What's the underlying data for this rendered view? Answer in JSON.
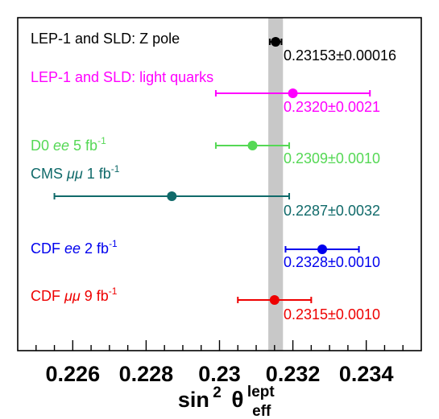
{
  "chart_data": {
    "type": "scatter",
    "subtype": "measurement-comparison",
    "xlabel": {
      "main": "sin",
      "sup": "2",
      "theta": "θ",
      "theta_sub": "eff",
      "theta_sup": "lept"
    },
    "xlim": [
      0.2245,
      0.2355
    ],
    "major_ticks": [
      0.226,
      0.228,
      0.23,
      0.232,
      0.234
    ],
    "tick_labels": [
      "0.226",
      "0.228",
      "0.23",
      "0.232",
      "0.234"
    ],
    "band": {
      "center": 0.23153,
      "half_width": 0.00016,
      "color": "#c8c8c8"
    },
    "grid": false,
    "legend": "none",
    "series": [
      {
        "label_parts": [
          {
            "t": "LEP-1 and SLD: Z pole",
            "s": "n"
          }
        ],
        "value": 0.23153,
        "error": 0.00016,
        "value_text": "0.23153±0.00016",
        "color": "#000000"
      },
      {
        "label_parts": [
          {
            "t": "LEP-1 and SLD: light quarks",
            "s": "n"
          }
        ],
        "value": 0.232,
        "error": 0.0021,
        "value_text": "0.2320±0.0021",
        "color": "#ff00ff"
      },
      {
        "label_parts": [
          {
            "t": "D0 ",
            "s": "n"
          },
          {
            "t": "ee",
            "s": "i"
          },
          {
            "t": " 5 fb",
            "s": "n"
          },
          {
            "t": "-1",
            "s": "sup"
          }
        ],
        "value": 0.2309,
        "error": 0.001,
        "value_text": "0.2309±0.0010",
        "color": "#55d855"
      },
      {
        "label_parts": [
          {
            "t": "CMS ",
            "s": "n"
          },
          {
            "t": "μμ",
            "s": "i"
          },
          {
            "t": " 1 fb",
            "s": "n"
          },
          {
            "t": "-1",
            "s": "sup"
          }
        ],
        "value": 0.2287,
        "error": 0.0032,
        "value_text": "0.2287±0.0032",
        "color": "#106a6a"
      },
      {
        "label_parts": [
          {
            "t": "CDF ",
            "s": "n"
          },
          {
            "t": "ee",
            "s": "i"
          },
          {
            "t": " 2 fb",
            "s": "n"
          },
          {
            "t": "-1",
            "s": "sup"
          }
        ],
        "value": 0.2328,
        "error": 0.001,
        "value_text": "0.2328±0.0010",
        "color": "#0000ee"
      },
      {
        "label_parts": [
          {
            "t": "CDF ",
            "s": "n"
          },
          {
            "t": "μμ",
            "s": "i"
          },
          {
            "t": " 9 fb",
            "s": "n"
          },
          {
            "t": "-1",
            "s": "sup"
          }
        ],
        "value": 0.2315,
        "error": 0.001,
        "value_text": "0.2315±0.0010",
        "color": "#ee0000"
      }
    ]
  }
}
